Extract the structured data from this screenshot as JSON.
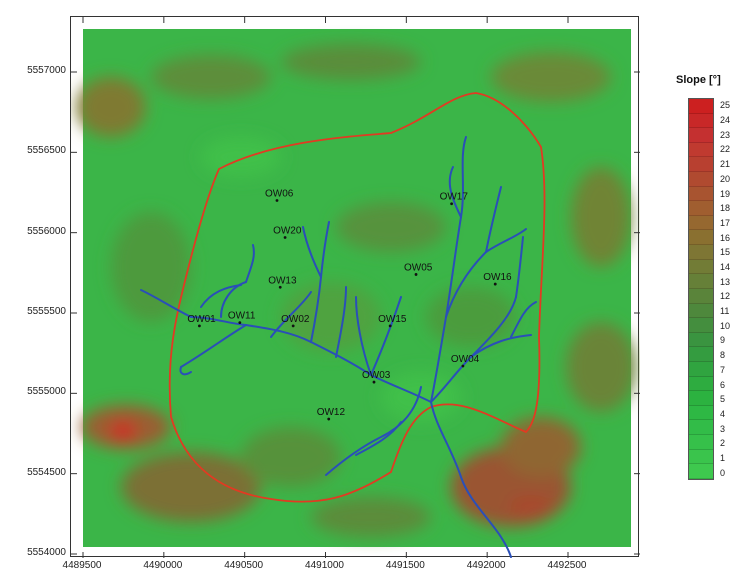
{
  "legend": {
    "title": "Slope [°]",
    "classes": [
      "25",
      "24",
      "23",
      "22",
      "21",
      "20",
      "19",
      "18",
      "17",
      "16",
      "15",
      "14",
      "13",
      "12",
      "11",
      "10",
      "9",
      "8",
      "7",
      "6",
      "5",
      "4",
      "3",
      "2",
      "1",
      "0"
    ],
    "colors": [
      "#cc2020",
      "#c82828",
      "#c43030",
      "#c03a30",
      "#b84030",
      "#b04a30",
      "#a85430",
      "#a05e30",
      "#966830",
      "#8a7030",
      "#7e7634",
      "#727c36",
      "#668038",
      "#5a843a",
      "#4e883c",
      "#448e3e",
      "#3a9440",
      "#349c40",
      "#30a440",
      "#2eac40",
      "#2cb240",
      "#2eb844",
      "#32bc48",
      "#36c04a",
      "#3ac44c",
      "#3ec84e"
    ]
  },
  "axes": {
    "x_ticks": [
      "4489500",
      "4490000",
      "4490500",
      "4491000",
      "4491500",
      "4492000",
      "4492500"
    ],
    "y_ticks": [
      "5557000",
      "5556500",
      "5556000",
      "5555500",
      "5555000",
      "5554500",
      "5554000"
    ]
  },
  "wells": [
    {
      "id": "OW06",
      "x": 4490700,
      "y": 5556200
    },
    {
      "id": "OW20",
      "x": 4490750,
      "y": 5555970
    },
    {
      "id": "OW13",
      "x": 4490720,
      "y": 5555660
    },
    {
      "id": "OW01",
      "x": 4490220,
      "y": 5555420
    },
    {
      "id": "OW11",
      "x": 4490470,
      "y": 5555440
    },
    {
      "id": "OW02",
      "x": 4490800,
      "y": 5555420
    },
    {
      "id": "OW17",
      "x": 4491780,
      "y": 5556180
    },
    {
      "id": "OW05",
      "x": 4491560,
      "y": 5555740
    },
    {
      "id": "OW16",
      "x": 4492050,
      "y": 5555680
    },
    {
      "id": "OW15",
      "x": 4491400,
      "y": 5555420
    },
    {
      "id": "OW04",
      "x": 4491850,
      "y": 5555170
    },
    {
      "id": "OW03",
      "x": 4491300,
      "y": 5555070
    },
    {
      "id": "OW12",
      "x": 4491020,
      "y": 5554840
    }
  ]
}
